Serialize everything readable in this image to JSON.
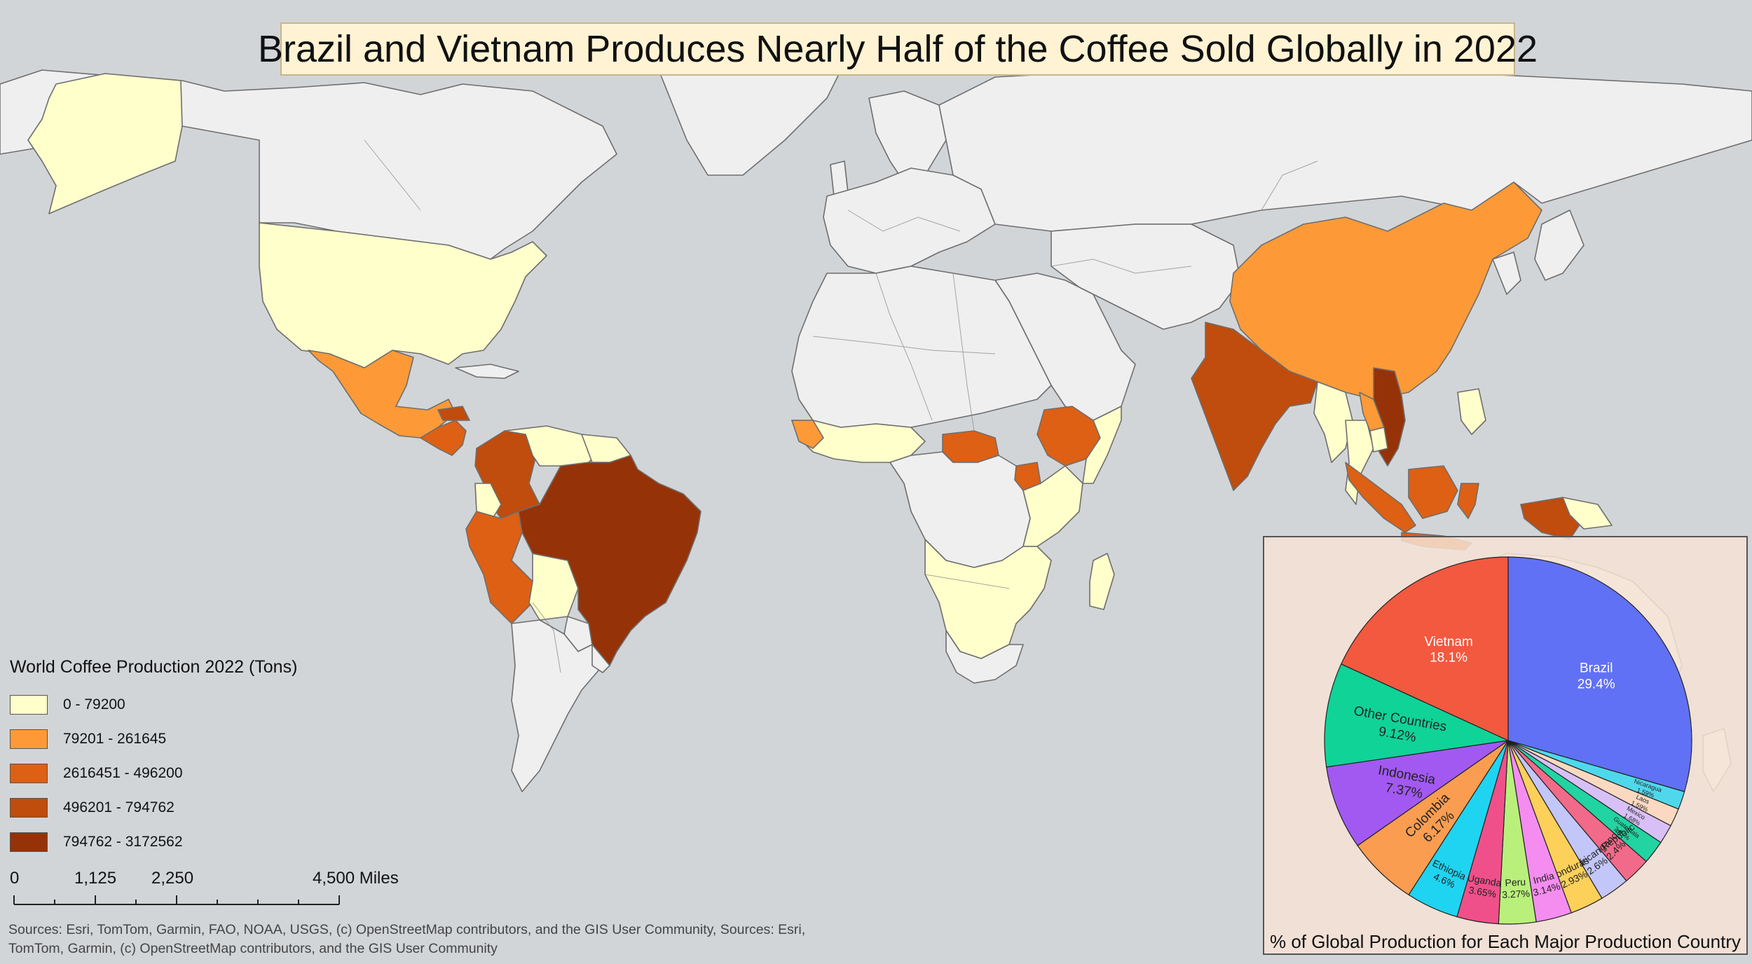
{
  "title": "Brazil and Vietnam Produces Nearly Half of the Coffee Sold Globally in 2022",
  "colors": {
    "ocean": "#d2d5d8",
    "land_nodata": "#efefef",
    "border": "#6e6e6e",
    "class_1": "#ffffcc",
    "class_2": "#fd9a37",
    "class_3": "#dd6014",
    "class_4": "#c04c0d",
    "class_5": "#963208"
  },
  "legend": {
    "title": "World Coffee Production 2022 (Tons)",
    "items": [
      {
        "label": "0 - 79200",
        "color": "#ffffcc"
      },
      {
        "label": "79201 - 261645",
        "color": "#fd9a37"
      },
      {
        "label": "2616451 - 496200",
        "color": "#dd6014"
      },
      {
        "label": "496201 - 794762",
        "color": "#c04c0d"
      },
      {
        "label": "794762 - 3172562",
        "color": "#963208"
      }
    ]
  },
  "scalebar": {
    "labels": [
      "0",
      "1,125",
      "2,250",
      "4,500 Miles"
    ]
  },
  "sources": "Sources: Esri, TomTom, Garmin, FAO, NOAA, USGS, (c) OpenStreetMap contributors, and the GIS User Community, Sources: Esri, TomTom, Garmin, (c) OpenStreetMap contributors, and the GIS User Community",
  "chart_data": {
    "type": "pie",
    "title": "% of Global Production for Each Major Production Country",
    "slices": [
      {
        "label": "Brazil",
        "value": 29.4,
        "display": "29.4%",
        "color": "#6171f5"
      },
      {
        "label": "Nicaragua",
        "value": 1.59,
        "display": "1.59%",
        "color": "#4fd8ec"
      },
      {
        "label": "Laos",
        "value": 1.59,
        "display": "1.59%",
        "color": "#fbd9c0"
      },
      {
        "label": "Mexico",
        "value": 1.68,
        "display": "1.68%",
        "color": "#d8c0f6"
      },
      {
        "label": "Guatemala",
        "value": 2.07,
        "display": "2.07%",
        "color": "#22d4a2"
      },
      {
        "label": "Uganda",
        "value": 2.4,
        "display": "2.4%",
        "color": "#f26a8a"
      },
      {
        "label": "Central African Republic",
        "value": 2.6,
        "display": "2.6%",
        "color": "#c3c6f8"
      },
      {
        "label": "Honduras",
        "value": 2.93,
        "display": "2.93%",
        "color": "#fdd05a"
      },
      {
        "label": "India",
        "value": 3.14,
        "display": "3.14%",
        "color": "#f58df0"
      },
      {
        "label": "Peru",
        "value": 3.27,
        "display": "3.27%",
        "color": "#b9f07b"
      },
      {
        "label": "Uganda",
        "value": 3.65,
        "display": "3.65%",
        "color": "#f0508a"
      },
      {
        "label": "Ethiopia",
        "value": 4.6,
        "display": "4.6%",
        "color": "#1fd4f0"
      },
      {
        "label": "Colombia",
        "value": 6.17,
        "display": "6.17%",
        "color": "#fb9d50"
      },
      {
        "label": "Indonesia",
        "value": 7.37,
        "display": "7.37%",
        "color": "#a259f2"
      },
      {
        "label": "Other Countries",
        "value": 9.12,
        "display": "9.12%",
        "color": "#10d398"
      },
      {
        "label": "Vietnam",
        "value": 18.1,
        "display": "18.1%",
        "color": "#f2593f"
      }
    ]
  }
}
